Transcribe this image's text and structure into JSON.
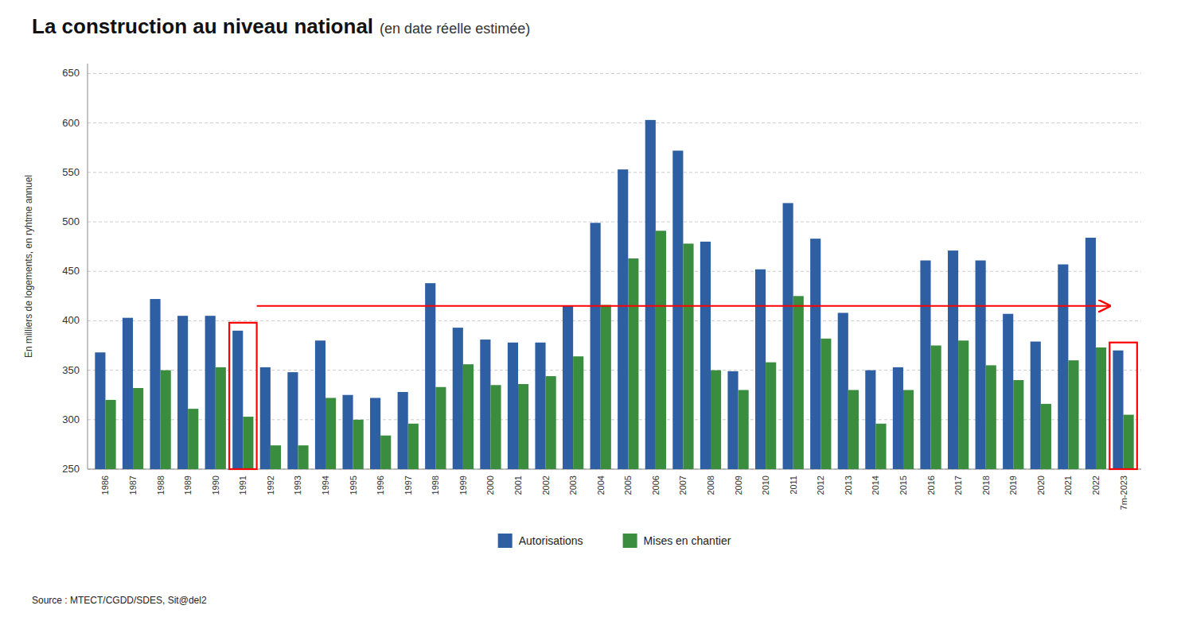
{
  "chart_data": {
    "type": "bar",
    "title": "La construction au niveau national",
    "subtitle": "(en date réelle estimée)",
    "y_label": "En milliers de logements, en ryhtme annuel",
    "source": "Source : MTECT/CGDD/SDES, Sit@del2",
    "categories": [
      "1986",
      "1987",
      "1988",
      "1989",
      "1990",
      "1991",
      "1992",
      "1993",
      "1994",
      "1995",
      "1996",
      "1997",
      "1998",
      "1999",
      "2000",
      "2001",
      "2002",
      "2003",
      "2004",
      "2005",
      "2006",
      "2007",
      "2008",
      "2009",
      "2010",
      "2011",
      "2012",
      "2013",
      "2014",
      "2015",
      "2016",
      "2017",
      "2018",
      "2019",
      "2020",
      "2021",
      "2022",
      "7m-2023"
    ],
    "series": [
      {
        "name": "Autorisations",
        "color": "#2e5fa3",
        "values": [
          368,
          403,
          422,
          405,
          405,
          390,
          353,
          348,
          380,
          325,
          322,
          328,
          438,
          393,
          381,
          378,
          378,
          415,
          499,
          553,
          603,
          572,
          480,
          349,
          452,
          519,
          483,
          408,
          350,
          353,
          461,
          471,
          461,
          407,
          379,
          457,
          484,
          370
        ]
      },
      {
        "name": "Mises en chantier",
        "color": "#3a8c3f",
        "values": [
          320,
          332,
          350,
          311,
          353,
          303,
          274,
          274,
          322,
          300,
          284,
          296,
          333,
          356,
          335,
          336,
          344,
          364,
          416,
          463,
          491,
          478,
          350,
          330,
          358,
          425,
          382,
          330,
          296,
          330,
          375,
          380,
          355,
          340,
          316,
          360,
          373,
          305
        ]
      }
    ],
    "ylim": [
      250,
      660
    ],
    "yticks": [
      250,
      300,
      350,
      400,
      450,
      500,
      550,
      600,
      650
    ],
    "grid": true,
    "legend": "bottom",
    "annotations": [
      {
        "type": "box",
        "category": "1991",
        "color": "red"
      },
      {
        "type": "box",
        "category": "7m-2023",
        "color": "red"
      },
      {
        "type": "arrow",
        "y": 415,
        "from": "1991",
        "to": "7m-2023",
        "color": "red"
      }
    ]
  }
}
